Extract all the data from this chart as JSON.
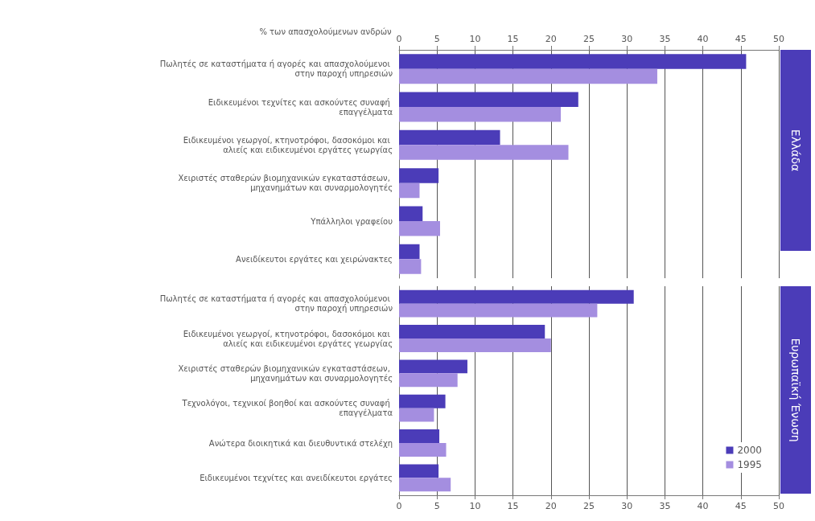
{
  "chart_data": [
    {
      "type": "bar",
      "orientation": "horizontal",
      "title": "Ελλάδα",
      "xlabel": "% των απασχολούμενων ανδρών",
      "categories": [
        "Πωλητές σε καταστήματα ή αγορές και απασχολούμενοι στην παροχή υπηρεσιών",
        "Ειδικευμένοι τεχνίτες και ασκούντες συναφή επαγγέλματα",
        "Ειδικευμένοι γεωργοί, κτηνοτρόφοι, δασοκόμοι και αλιείς και ειδικευμένοι εργάτες γεωργίας",
        "Χειριστές σταθερών βιομηχανικών εγκαταστάσεων, μηχανημάτων και συναρμολογητές",
        "Υπάλληλοι γραφείου",
        "Ανειδίκευτοι εργάτες και χειρώνακτες"
      ],
      "series": [
        {
          "color": "#4b3cb8",
          "values": [
            45.7,
            23.6,
            13.3,
            5.2,
            3.1,
            2.7
          ]
        },
        {
          "color": "#a48ee0",
          "values": [
            34,
            21.3,
            22.3,
            2.7,
            5.4,
            2.9
          ]
        }
      ],
      "xlim": [
        0,
        50
      ],
      "xticks": [
        0,
        5,
        10,
        15,
        20,
        25,
        30,
        35,
        40,
        45,
        50
      ],
      "grid": "x",
      "legend": false
    },
    {
      "type": "bar",
      "orientation": "horizontal",
      "title": "Ευρωπαϊκή Ένωση",
      "categories": [
        "Πωλητές σε καταστήματα ή αγορές και απασχολούμενοι στην παροχή υπηρεσιών",
        "Ειδικευμένοι γεωργοί, κτηνοτρόφοι, δασοκόμοι και αλιείς και ειδικευμένοι εργάτες γεωργίας",
        "Χειριστές σταθερών βιομηχανικών εγκαταστάσεων, μηχανημάτων και συναρμολογητές",
        "Τεχνολόγοι, τεχνικοί βοηθοί και ασκούντες συναφή επαγγέλματα",
        "Ανώτερα διοικητικά και διευθυντικά στελέχη",
        "Ειδικευμένοι τεχνίτες και ανειδίκευτοι εργάτες"
      ],
      "series": [
        {
          "name": "2000",
          "color": "#4b3cb8",
          "values": [
            30.9,
            19.2,
            9,
            6.1,
            5.3,
            5.2
          ]
        },
        {
          "name": "1995",
          "color": "#a48ee0",
          "values": [
            26.1,
            20,
            7.7,
            4.6,
            6.2,
            6.8
          ]
        }
      ],
      "xlim": [
        0,
        50
      ],
      "xticks": [
        0,
        5,
        10,
        15,
        20,
        25,
        30,
        35,
        40,
        45,
        50
      ],
      "grid": "x",
      "legend": "bottom right"
    }
  ]
}
